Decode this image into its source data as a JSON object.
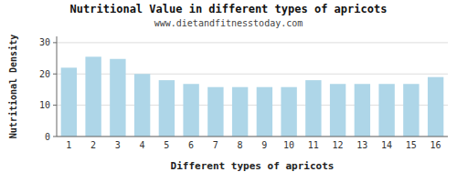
{
  "chart_data": {
    "type": "bar",
    "title": "Nutritional Value in different types of apricots",
    "subtitle": "www.dietandfitnesstoday.com",
    "xlabel": "Different types of apricots",
    "ylabel": "Nutritional Density",
    "categories": [
      "1",
      "2",
      "3",
      "4",
      "5",
      "6",
      "7",
      "8",
      "9",
      "10",
      "11",
      "12",
      "13",
      "14",
      "15",
      "16"
    ],
    "values": [
      22.0,
      25.5,
      24.8,
      20.0,
      18.0,
      16.8,
      15.8,
      15.8,
      15.8,
      15.8,
      18.0,
      16.8,
      16.8,
      16.8,
      16.8,
      19.0
    ],
    "color": "#aed6e8",
    "ylim": [
      0,
      32
    ],
    "yticks": [
      0,
      10,
      20,
      30
    ],
    "grid": true
  }
}
